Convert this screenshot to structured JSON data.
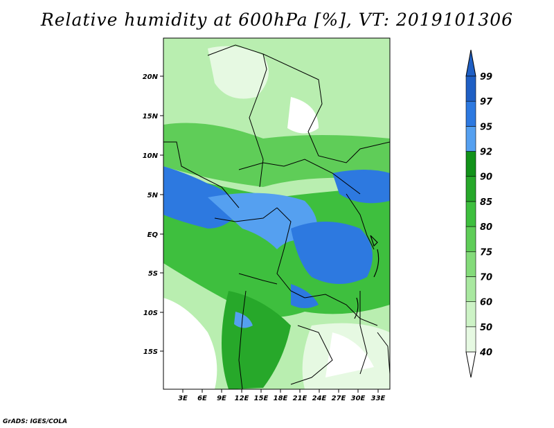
{
  "title": "Relative humidity at 600hPa [%], VT: 2019101306",
  "credit": "GrADS: IGES/COLA",
  "map": {
    "lon_ticks": [
      "3E",
      "6E",
      "9E",
      "12E",
      "15E",
      "18E",
      "21E",
      "24E",
      "27E",
      "30E",
      "33E"
    ],
    "lat_ticks": [
      "20N",
      "15N",
      "10N",
      "5N",
      "EQ",
      "5S",
      "10S",
      "15S"
    ]
  },
  "colorbar": {
    "labels": [
      "40",
      "50",
      "60",
      "70",
      "75",
      "80",
      "85",
      "90",
      "92",
      "95",
      "97",
      "99"
    ],
    "colors": [
      "#ffffff",
      "#e6f9e2",
      "#cdf3c6",
      "#a9e8a0",
      "#84db7a",
      "#5fcd58",
      "#3ebf3e",
      "#27a82a",
      "#12921a",
      "#55a0f0",
      "#2d79e0",
      "#1f5fc4"
    ]
  }
}
